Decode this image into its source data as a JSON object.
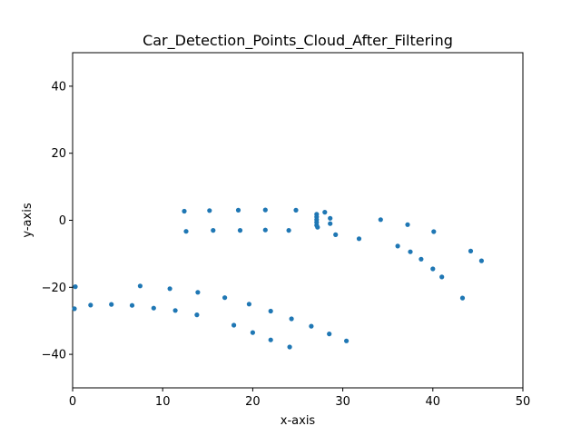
{
  "chart_data": {
    "type": "scatter",
    "title": "Car_Detection_Points_Cloud_After_Filtering",
    "xlabel": "x-axis",
    "ylabel": "y-axis",
    "xlim": [
      0,
      50
    ],
    "ylim": [
      -50,
      50
    ],
    "xticks": [
      0,
      10,
      20,
      30,
      40,
      50
    ],
    "yticks": [
      -40,
      -20,
      0,
      20,
      40
    ],
    "grid": false,
    "color": "#1f77b4",
    "series": [
      {
        "points": [
          [
            12.4,
            2.7
          ],
          [
            15.2,
            2.9
          ],
          [
            18.4,
            3.0
          ],
          [
            21.4,
            3.1
          ],
          [
            24.8,
            3.0
          ],
          [
            12.6,
            -3.3
          ],
          [
            15.6,
            -3.0
          ],
          [
            18.6,
            -3.0
          ],
          [
            21.4,
            -2.9
          ],
          [
            24.0,
            -3.0
          ],
          [
            27.1,
            1.8
          ],
          [
            27.1,
            1.0
          ],
          [
            27.1,
            0.2
          ],
          [
            27.1,
            -0.6
          ],
          [
            27.1,
            -1.5
          ],
          [
            27.2,
            -2.1
          ],
          [
            28.0,
            2.4
          ],
          [
            28.6,
            0.6
          ],
          [
            28.6,
            -1.0
          ],
          [
            29.2,
            -4.3
          ],
          [
            31.8,
            -5.5
          ],
          [
            34.2,
            0.2
          ],
          [
            37.2,
            -1.3
          ],
          [
            40.1,
            -3.4
          ],
          [
            36.1,
            -7.7
          ],
          [
            37.5,
            -9.4
          ],
          [
            38.7,
            -11.6
          ],
          [
            40.0,
            -14.5
          ],
          [
            41.0,
            -16.9
          ],
          [
            44.2,
            -9.2
          ],
          [
            45.4,
            -12.1
          ],
          [
            43.3,
            -23.2
          ],
          [
            0.3,
            -19.8
          ],
          [
            0.2,
            -26.4
          ],
          [
            2.0,
            -25.3
          ],
          [
            4.3,
            -25.1
          ],
          [
            6.6,
            -25.4
          ],
          [
            9.0,
            -26.2
          ],
          [
            11.4,
            -26.9
          ],
          [
            13.8,
            -28.2
          ],
          [
            7.5,
            -19.6
          ],
          [
            10.8,
            -20.4
          ],
          [
            13.9,
            -21.5
          ],
          [
            16.9,
            -23.1
          ],
          [
            19.6,
            -25.0
          ],
          [
            22.0,
            -27.1
          ],
          [
            24.3,
            -29.4
          ],
          [
            26.5,
            -31.6
          ],
          [
            28.5,
            -33.9
          ],
          [
            30.4,
            -36.0
          ],
          [
            17.9,
            -31.3
          ],
          [
            20.0,
            -33.5
          ],
          [
            22.0,
            -35.7
          ],
          [
            24.1,
            -37.8
          ]
        ]
      }
    ]
  }
}
